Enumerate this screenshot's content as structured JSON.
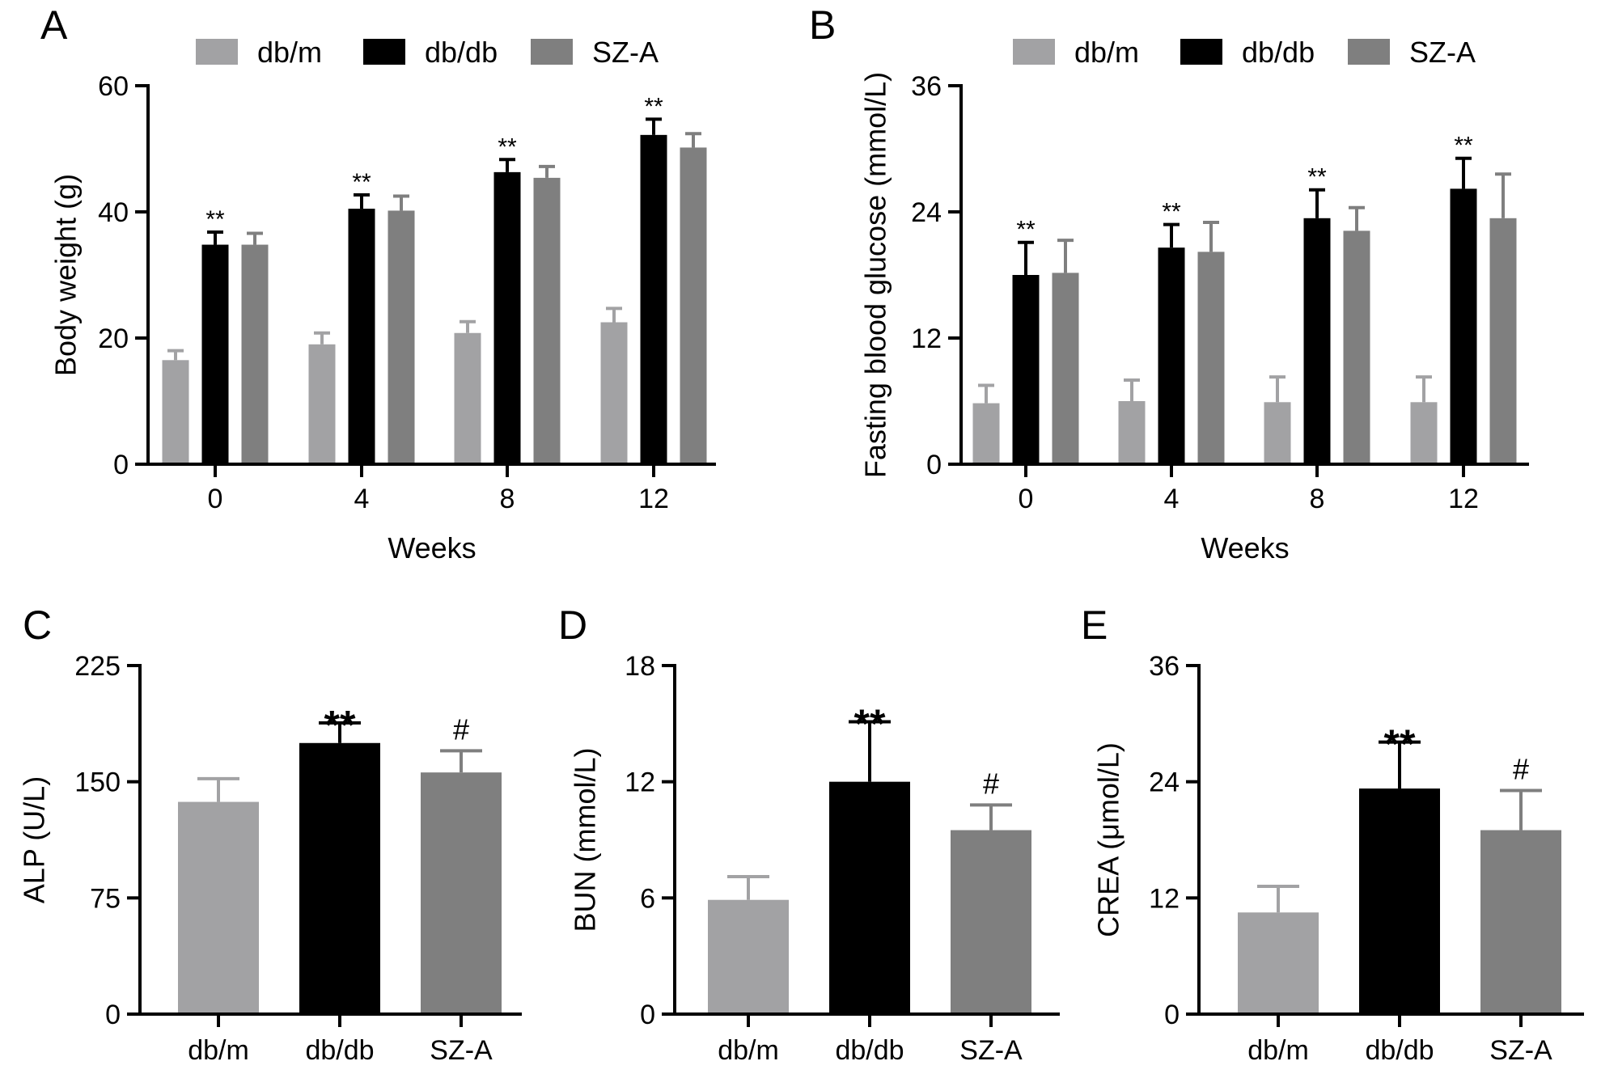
{
  "colors": {
    "db_m": "#a2a2a4",
    "db_db": "#000000",
    "sz_a": "#7f7f7f"
  },
  "chart_data": [
    {
      "id": "A",
      "type": "bar",
      "panel_label": "A",
      "xlabel": "Weeks",
      "ylabel": "Body weight (g)",
      "ylim": [
        0,
        60
      ],
      "yticks": [
        "0",
        "20",
        "40",
        "60"
      ],
      "categories": [
        "0",
        "4",
        "8",
        "12"
      ],
      "legend": [
        "db/m",
        "db/db",
        "SZ-A"
      ],
      "series": [
        {
          "name": "db/m",
          "color": "#a2a2a4",
          "values": [
            16.5,
            19.0,
            20.8,
            22.5
          ],
          "errors": [
            1.5,
            1.8,
            1.8,
            2.2
          ],
          "sig": [
            "",
            "",
            "",
            ""
          ]
        },
        {
          "name": "db/db",
          "color": "#000000",
          "values": [
            34.8,
            40.5,
            46.3,
            52.2
          ],
          "errors": [
            2.0,
            2.2,
            2.0,
            2.5
          ],
          "sig": [
            "**",
            "**",
            "**",
            "**"
          ]
        },
        {
          "name": "SZ-A",
          "color": "#7f7f7f",
          "values": [
            34.8,
            40.2,
            45.4,
            50.2
          ],
          "errors": [
            1.8,
            2.3,
            1.8,
            2.2
          ],
          "sig": [
            "",
            "",
            "",
            ""
          ]
        }
      ]
    },
    {
      "id": "B",
      "type": "bar",
      "panel_label": "B",
      "xlabel": "Weeks",
      "ylabel": "Fasting blood glucose (mmol/L)",
      "ylim": [
        0,
        36
      ],
      "yticks": [
        "0",
        "12",
        "24",
        "36"
      ],
      "categories": [
        "0",
        "4",
        "8",
        "12"
      ],
      "legend": [
        "db/m",
        "db/db",
        "SZ-A"
      ],
      "series": [
        {
          "name": "db/m",
          "color": "#a2a2a4",
          "values": [
            5.8,
            6.0,
            5.9,
            5.9
          ],
          "errors": [
            1.7,
            2.0,
            2.4,
            2.4
          ],
          "sig": [
            "",
            "",
            "",
            ""
          ]
        },
        {
          "name": "db/db",
          "color": "#000000",
          "values": [
            18.0,
            20.6,
            23.4,
            26.2
          ],
          "errors": [
            3.1,
            2.2,
            2.7,
            2.9
          ],
          "sig": [
            "**",
            "**",
            "**",
            "**"
          ]
        },
        {
          "name": "SZ-A",
          "color": "#7f7f7f",
          "values": [
            18.2,
            20.2,
            22.2,
            23.4
          ],
          "errors": [
            3.1,
            2.8,
            2.2,
            4.2
          ],
          "sig": [
            "",
            "",
            "",
            ""
          ]
        }
      ]
    },
    {
      "id": "C",
      "type": "bar",
      "panel_label": "C",
      "xlabel": "",
      "ylabel": "ALP (U/L)",
      "ylim": [
        0,
        225
      ],
      "yticks": [
        "0",
        "75",
        "150",
        "225"
      ],
      "categories": [
        "db/m",
        "db/db",
        "SZ-A"
      ],
      "bars": [
        {
          "name": "db/m",
          "color": "#a2a2a4",
          "value": 137,
          "error": 15,
          "sig": ""
        },
        {
          "name": "db/db",
          "color": "#000000",
          "value": 175,
          "error": 13,
          "sig": "**"
        },
        {
          "name": "SZ-A",
          "color": "#7f7f7f",
          "value": 156,
          "error": 14,
          "sig": "#"
        }
      ]
    },
    {
      "id": "D",
      "type": "bar",
      "panel_label": "D",
      "xlabel": "",
      "ylabel": "BUN (mmol/L)",
      "ylim": [
        0,
        18
      ],
      "yticks": [
        "0",
        "6",
        "12",
        "18"
      ],
      "categories": [
        "db/m",
        "db/db",
        "SZ-A"
      ],
      "bars": [
        {
          "name": "db/m",
          "color": "#a2a2a4",
          "value": 5.9,
          "error": 1.2,
          "sig": ""
        },
        {
          "name": "db/db",
          "color": "#000000",
          "value": 12.0,
          "error": 3.1,
          "sig": "**"
        },
        {
          "name": "SZ-A",
          "color": "#7f7f7f",
          "value": 9.5,
          "error": 1.3,
          "sig": "#"
        }
      ]
    },
    {
      "id": "E",
      "type": "bar",
      "panel_label": "E",
      "xlabel": "",
      "ylabel": "CREA (μmol/L)",
      "ylim": [
        0,
        36
      ],
      "yticks": [
        "0",
        "12",
        "24",
        "36"
      ],
      "categories": [
        "db/m",
        "db/db",
        "SZ-A"
      ],
      "bars": [
        {
          "name": "db/m",
          "color": "#a2a2a4",
          "value": 10.5,
          "error": 2.7,
          "sig": ""
        },
        {
          "name": "db/db",
          "color": "#000000",
          "value": 23.3,
          "error": 4.8,
          "sig": "**"
        },
        {
          "name": "SZ-A",
          "color": "#7f7f7f",
          "value": 19.0,
          "error": 4.1,
          "sig": "#"
        }
      ]
    }
  ]
}
